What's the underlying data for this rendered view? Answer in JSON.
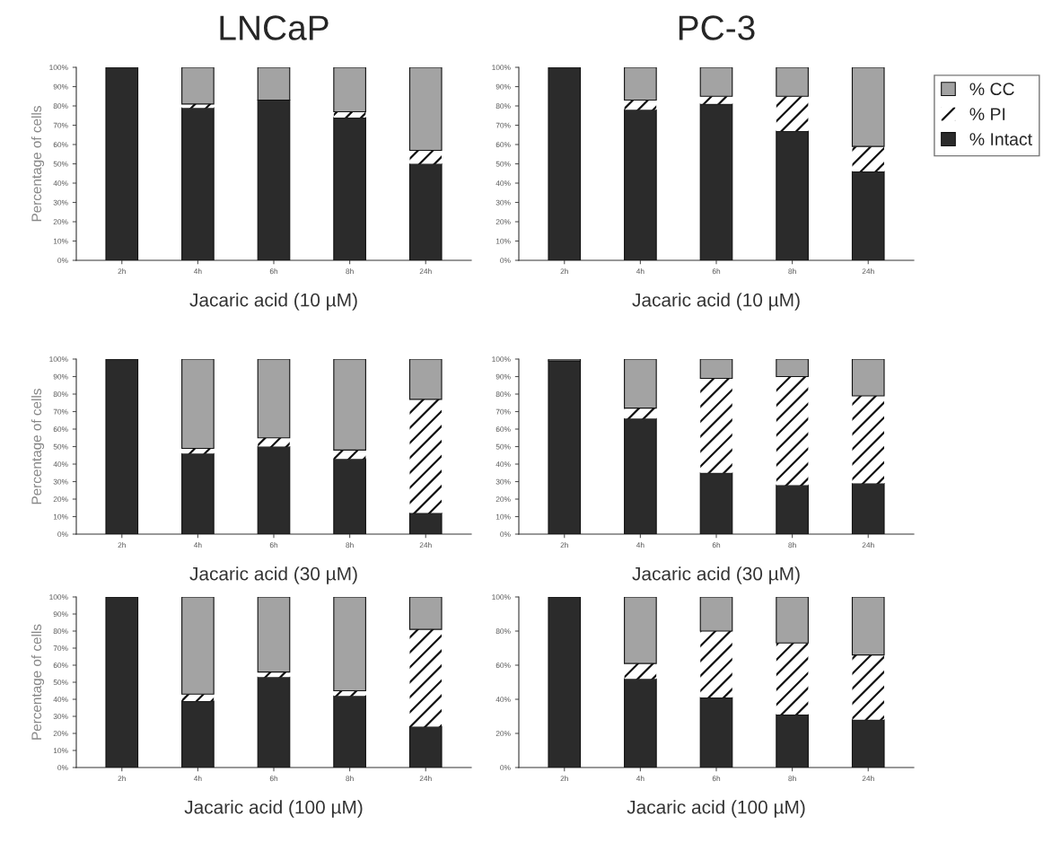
{
  "chart_data": [
    {
      "type": "bar",
      "stacked": true,
      "title": "LNCaP",
      "xlabel": "Jacaric acid (10 µM)",
      "ylabel": "Percentage of cells",
      "categories": [
        "2h",
        "4h",
        "6h",
        "8h",
        "24h"
      ],
      "ylim": [
        0,
        100
      ],
      "yticks": [
        {
          "value": 0,
          "label": "0%"
        },
        {
          "value": 10,
          "label": "10%"
        },
        {
          "value": 20,
          "label": "20%"
        },
        {
          "value": 30,
          "label": "30%"
        },
        {
          "value": 40,
          "label": "40%"
        },
        {
          "value": 50,
          "label": "50%"
        },
        {
          "value": 60,
          "label": "60%"
        },
        {
          "value": 70,
          "label": "70%"
        },
        {
          "value": 80,
          "label": "80%"
        },
        {
          "value": 90,
          "label": "90%"
        },
        {
          "value": 100,
          "label": "100%"
        }
      ],
      "legend": false,
      "series": [
        {
          "color": "#2b2b2b",
          "values": [
            100,
            79,
            83,
            74,
            50
          ]
        },
        {
          "color": "#ffffff",
          "values": [
            null,
            2,
            null,
            3,
            7
          ]
        },
        {
          "color": "#a3a3a3",
          "values": [
            null,
            19,
            17,
            23,
            43
          ]
        }
      ]
    },
    {
      "type": "bar",
      "stacked": true,
      "title": "PC-3",
      "xlabel": "Jacaric acid (10 µM)",
      "categories": [
        "2h",
        "4h",
        "6h",
        "8h",
        "24h"
      ],
      "ylim": [
        0,
        100
      ],
      "yticks": [
        {
          "value": 0,
          "label": "0%"
        },
        {
          "value": 10,
          "label": "10%"
        },
        {
          "value": 20,
          "label": "20%"
        },
        {
          "value": 30,
          "label": "30%"
        },
        {
          "value": 40,
          "label": "40%"
        },
        {
          "value": 50,
          "label": "50%"
        },
        {
          "value": 60,
          "label": "60%"
        },
        {
          "value": 70,
          "label": "70%"
        },
        {
          "value": 80,
          "label": "80%"
        },
        {
          "value": 90,
          "label": "90%"
        },
        {
          "value": 100,
          "label": "100%"
        }
      ],
      "legend": "right",
      "series": [
        {
          "name": "% Intact",
          "color": "#2b2b2b",
          "values": [
            100,
            78,
            81,
            67,
            46
          ]
        },
        {
          "name": "% PI",
          "color": "#ffffff",
          "values": [
            null,
            5,
            4,
            18,
            13
          ]
        },
        {
          "name": "% CC",
          "color": "#a3a3a3",
          "values": [
            null,
            17,
            15,
            15,
            41
          ]
        }
      ]
    },
    {
      "type": "bar",
      "stacked": true,
      "xlabel": "Jacaric acid (30 µM)",
      "ylabel": "Percentage of cells",
      "categories": [
        "2h",
        "4h",
        "6h",
        "8h",
        "24h"
      ],
      "ylim": [
        0,
        100
      ],
      "yticks": [
        {
          "value": 0,
          "label": "0%"
        },
        {
          "value": 10,
          "label": "10%"
        },
        {
          "value": 20,
          "label": "20%"
        },
        {
          "value": 30,
          "label": "30%"
        },
        {
          "value": 40,
          "label": "40%"
        },
        {
          "value": 50,
          "label": "50%"
        },
        {
          "value": 60,
          "label": "60%"
        },
        {
          "value": 70,
          "label": "70%"
        },
        {
          "value": 80,
          "label": "80%"
        },
        {
          "value": 90,
          "label": "90%"
        },
        {
          "value": 100,
          "label": "100%"
        }
      ],
      "legend": false,
      "series": [
        {
          "color": "#2b2b2b",
          "values": [
            100,
            46,
            50,
            43,
            12
          ]
        },
        {
          "color": "#ffffff",
          "values": [
            null,
            3,
            5,
            5,
            65
          ]
        },
        {
          "color": "#a3a3a3",
          "values": [
            null,
            51,
            45,
            52,
            23
          ]
        }
      ]
    },
    {
      "type": "bar",
      "stacked": true,
      "xlabel": "Jacaric acid (30 µM)",
      "categories": [
        "2h",
        "4h",
        "6h",
        "8h",
        "24h"
      ],
      "ylim": [
        0,
        100
      ],
      "yticks": [
        {
          "value": 0,
          "label": "0%"
        },
        {
          "value": 10,
          "label": "10%"
        },
        {
          "value": 20,
          "label": "20%"
        },
        {
          "value": 30,
          "label": "30%"
        },
        {
          "value": 40,
          "label": "40%"
        },
        {
          "value": 50,
          "label": "50%"
        },
        {
          "value": 60,
          "label": "60%"
        },
        {
          "value": 70,
          "label": "70%"
        },
        {
          "value": 80,
          "label": "80%"
        },
        {
          "value": 90,
          "label": "90%"
        },
        {
          "value": 100,
          "label": "100%"
        }
      ],
      "legend": false,
      "series": [
        {
          "color": "#2b2b2b",
          "values": [
            99,
            66,
            35,
            28,
            29
          ]
        },
        {
          "color": "#ffffff",
          "values": [
            null,
            6,
            54,
            62,
            50
          ]
        },
        {
          "color": "#a3a3a3",
          "values": [
            1,
            28,
            11,
            10,
            21
          ]
        }
      ]
    },
    {
      "type": "bar",
      "stacked": true,
      "xlabel": "Jacaric acid (100 µM)",
      "ylabel": "Percentage of cells",
      "categories": [
        "2h",
        "4h",
        "6h",
        "8h",
        "24h"
      ],
      "ylim": [
        0,
        100
      ],
      "yticks": [
        {
          "value": 0,
          "label": "0%"
        },
        {
          "value": 10,
          "label": "10%"
        },
        {
          "value": 20,
          "label": "20%"
        },
        {
          "value": 30,
          "label": "30%"
        },
        {
          "value": 40,
          "label": "40%"
        },
        {
          "value": 50,
          "label": "50%"
        },
        {
          "value": 60,
          "label": "60%"
        },
        {
          "value": 70,
          "label": "70%"
        },
        {
          "value": 80,
          "label": "80%"
        },
        {
          "value": 90,
          "label": "90%"
        },
        {
          "value": 100,
          "label": "100%"
        }
      ],
      "legend": false,
      "series": [
        {
          "color": "#2b2b2b",
          "values": [
            100,
            39,
            53,
            42,
            24
          ]
        },
        {
          "color": "#ffffff",
          "values": [
            null,
            4,
            3,
            3,
            57
          ]
        },
        {
          "color": "#a3a3a3",
          "values": [
            null,
            57,
            44,
            55,
            19
          ]
        }
      ]
    },
    {
      "type": "bar",
      "stacked": true,
      "xlabel": "Jacaric acid (100 µM)",
      "categories": [
        "2h",
        "4h",
        "6h",
        "8h",
        "24h"
      ],
      "ylim": [
        0,
        100
      ],
      "yticks": [
        {
          "value": 0,
          "label": "0%"
        },
        {
          "value": 20,
          "label": "20%"
        },
        {
          "value": 40,
          "label": "40%"
        },
        {
          "value": 60,
          "label": "60%"
        },
        {
          "value": 80,
          "label": "80%"
        },
        {
          "value": 100,
          "label": "100%"
        }
      ],
      "legend": false,
      "series": [
        {
          "color": "#2b2b2b",
          "values": [
            100,
            52,
            41,
            31,
            28
          ]
        },
        {
          "color": "#ffffff",
          "values": [
            null,
            9,
            39,
            42,
            38
          ]
        },
        {
          "color": "#a3a3a3",
          "values": [
            null,
            39,
            20,
            27,
            34
          ]
        }
      ]
    }
  ]
}
